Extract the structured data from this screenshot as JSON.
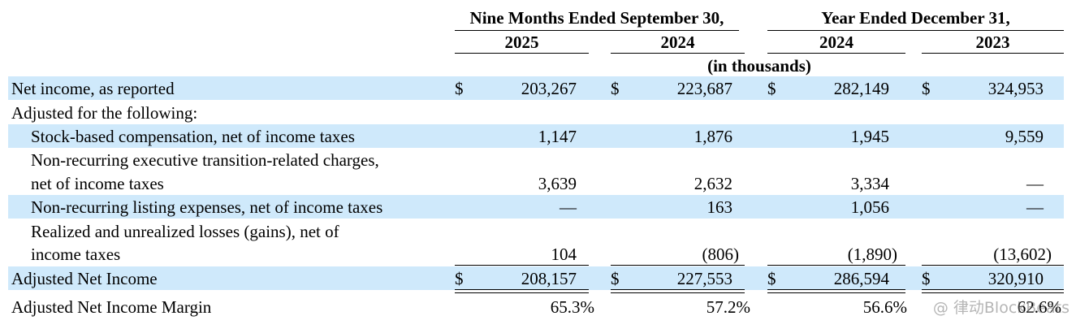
{
  "header": {
    "group_left": "Nine Months Ended September 30,",
    "group_right": "Year Ended December 31,",
    "col1": "2025",
    "col2": "2024",
    "col3": "2024",
    "col4": "2023",
    "units": "(in thousands)"
  },
  "rows": {
    "net_income": {
      "label": "Net income, as reported",
      "dollar": "$",
      "values": [
        "203,267",
        "223,687",
        "282,149",
        "324,953"
      ]
    },
    "adjusted_for": {
      "label": "Adjusted for the following:"
    },
    "sbc": {
      "label": "Stock-based compensation, net of income taxes",
      "values": [
        "1,147",
        "1,876",
        "1,945",
        "9,559"
      ]
    },
    "exec_transition": {
      "label_line1": "Non-recurring executive transition-related charges,",
      "label_line2": "net of income taxes",
      "values": [
        "3,639",
        "2,632",
        "3,334",
        "—"
      ]
    },
    "listing": {
      "label": "Non-recurring listing expenses, net of income taxes",
      "values": [
        "—",
        "163",
        "1,056",
        "—"
      ]
    },
    "losses": {
      "label_line1": "Realized and unrealized losses (gains), net of",
      "label_line2": "income taxes",
      "values": [
        "104",
        "(806)",
        "(1,890)",
        "(13,602)"
      ]
    },
    "adjusted_net_income": {
      "label": "Adjusted Net Income",
      "dollar": "$",
      "values": [
        "208,157",
        "227,553",
        "286,594",
        "320,910"
      ]
    },
    "margin": {
      "label": "Adjusted Net Income Margin",
      "values": [
        "65.3%",
        "57.2%",
        "56.6%",
        "62.6%"
      ]
    }
  },
  "watermark": "@ 律动BlockBeats",
  "colors": {
    "band": "#cfe9fb"
  }
}
